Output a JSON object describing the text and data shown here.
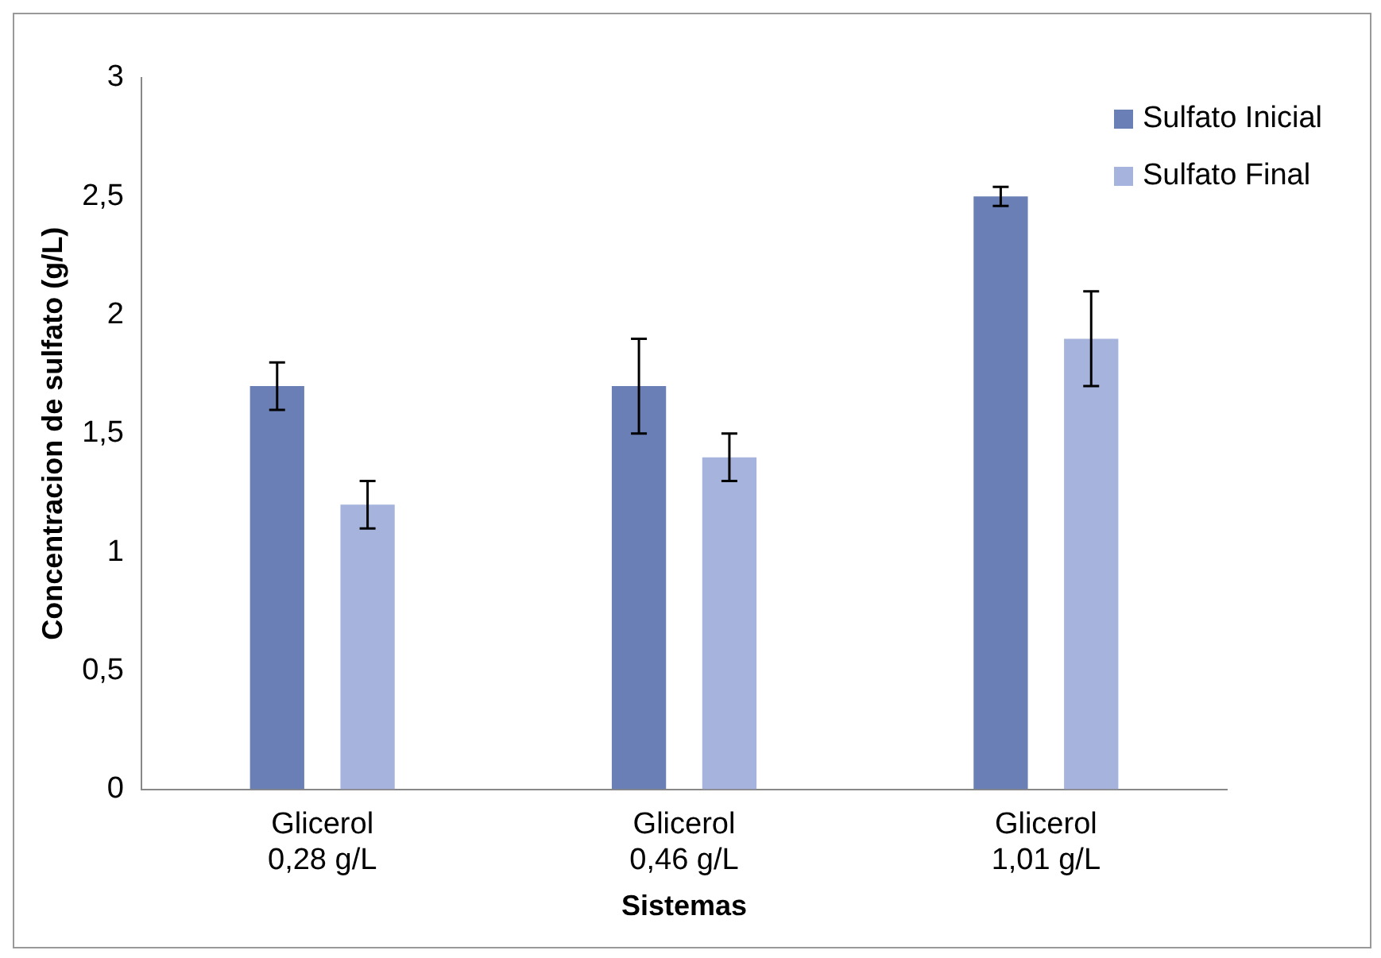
{
  "chart_data": {
    "type": "bar",
    "xlabel": "Sistemas",
    "ylabel": "Concentracion de sulfato (g/L)",
    "categories": [
      "Glicerol 0,28 g/L",
      "Glicerol 0,46 g/L",
      "Glicerol 1,01 g/L"
    ],
    "series": [
      {
        "name": "Sulfato Inicial",
        "color": "#6a7fb5",
        "values": [
          1.7,
          1.7,
          2.5
        ],
        "errors": [
          0.1,
          0.2,
          0.04
        ]
      },
      {
        "name": "Sulfato Final",
        "color": "#a6b3dc",
        "values": [
          1.2,
          1.4,
          1.9
        ],
        "errors": [
          0.1,
          0.1,
          0.2
        ]
      }
    ],
    "ylim": [
      0,
      3
    ],
    "yticks": [
      0,
      {
        "value": 0.5,
        "label": "0,5"
      },
      1,
      {
        "value": 1.5,
        "label": "1,5"
      },
      2,
      {
        "value": 2.5,
        "label": "2,5"
      },
      3
    ],
    "grid": false,
    "legend": "top right"
  }
}
